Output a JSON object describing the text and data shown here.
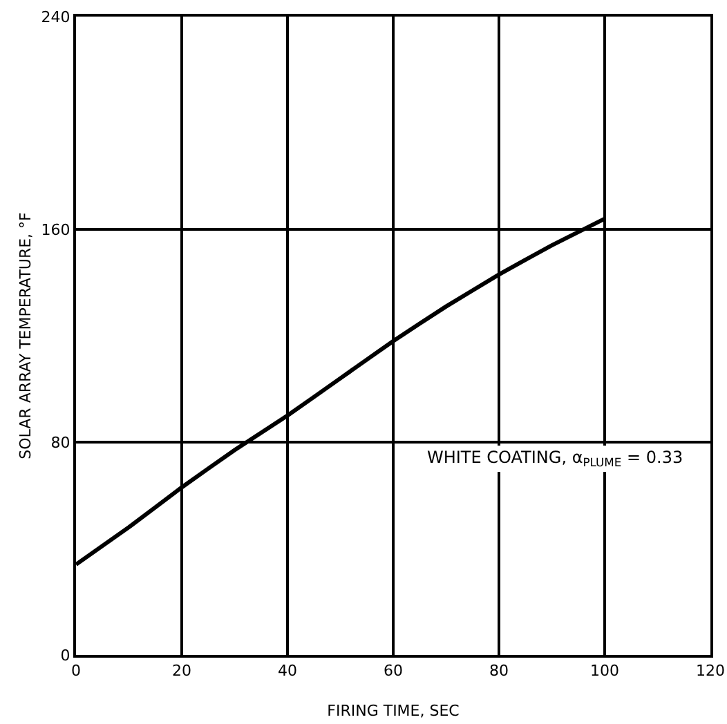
{
  "chart_data": {
    "type": "line",
    "xlabel": "FIRING TIME, SEC",
    "ylabel": "SOLAR ARRAY TEMPERATURE, °F",
    "x": [
      0,
      10,
      20,
      30,
      40,
      50,
      60,
      70,
      80,
      90,
      100
    ],
    "series": [
      {
        "color": "#000000",
        "values": [
          34,
          48,
          63,
          77,
          90,
          104,
          118,
          131,
          143,
          154,
          164
        ]
      }
    ],
    "xlim": [
      0,
      120
    ],
    "xticks": [
      0,
      20,
      40,
      60,
      80,
      100,
      120
    ],
    "ylim": [
      0,
      240
    ],
    "yticks": [
      0,
      80,
      160,
      240
    ],
    "grid": true,
    "marker": "none",
    "line_style": "solid",
    "annotations": [
      "WHITE COATING, α$_{PLUME}$ = 0.33"
    ]
  }
}
